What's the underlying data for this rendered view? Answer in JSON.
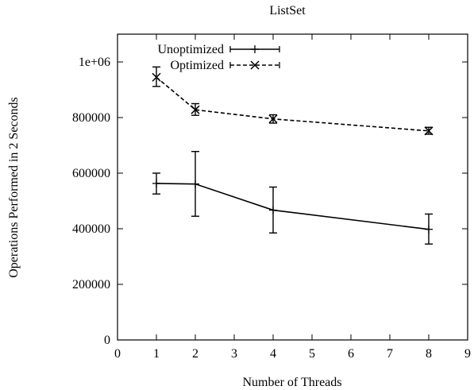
{
  "chart_data": {
    "type": "line",
    "title": "ListSet",
    "xlabel": "Number of Threads",
    "ylabel": "Operations Performed in 2 Seconds",
    "xlim": [
      0,
      9
    ],
    "ylim": [
      0,
      1100000
    ],
    "x_ticks": [
      0,
      1,
      2,
      3,
      4,
      5,
      6,
      7,
      8,
      9
    ],
    "x_tick_labels": [
      "0",
      "1",
      "2",
      "3",
      "4",
      "5",
      "6",
      "7",
      "8",
      "9"
    ],
    "y_ticks": [
      0,
      200000,
      400000,
      600000,
      800000,
      1000000
    ],
    "y_tick_labels": [
      "0",
      "200000",
      "400000",
      "600000",
      "800000",
      "1e+06"
    ],
    "grid": false,
    "legend_position": "top-left",
    "series": [
      {
        "name": "Unoptimized",
        "style": "solid",
        "marker": "plus",
        "color": "#000000",
        "x": [
          1,
          2,
          4,
          8
        ],
        "y": [
          563000,
          561000,
          467000,
          398000
        ],
        "err_low": [
          525000,
          445000,
          385000,
          345000
        ],
        "err_high": [
          600000,
          678000,
          550000,
          453000
        ]
      },
      {
        "name": "Optimized",
        "style": "dashed",
        "marker": "x",
        "color": "#000000",
        "x": [
          1,
          2,
          4,
          8
        ],
        "y": [
          945000,
          828000,
          795000,
          752000
        ],
        "err_low": [
          912000,
          808000,
          780000,
          740000
        ],
        "err_high": [
          982000,
          850000,
          810000,
          765000
        ]
      }
    ]
  }
}
